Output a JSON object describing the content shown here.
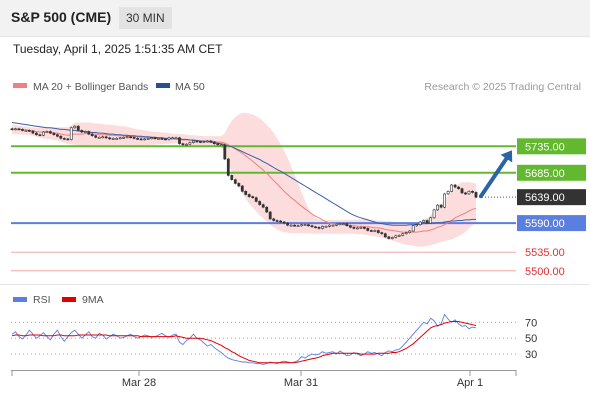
{
  "header": {
    "symbol": "S&P 500 (CME)",
    "timeframe": "30 MIN"
  },
  "date_line": "Tuesday, April 1, 2025 1:51:35 AM CET",
  "credit": "Research © 2025 Trading Central",
  "colors": {
    "support": "#5b7fe0",
    "resistance": "#62b82e",
    "weak": "#f0a8a8",
    "last": "#333333",
    "ma20": "#f08080",
    "ma50": "#3a5fa8",
    "band": "#fbd6d6",
    "rsi": "#5b7fe0",
    "rsi_ma": "#e00000",
    "arrow": "#2a63a8"
  },
  "chart_data": [
    {
      "type": "candlestick",
      "ylim": [
        5475,
        5830
      ],
      "legend": [
        {
          "name": "MA 20 + Bollinger Bands",
          "color": "#f08080"
        },
        {
          "name": "MA 50",
          "color": "#2a4f8f"
        }
      ],
      "x_ticks": [
        "Mar 28",
        "Mar 31",
        "Apr 1"
      ],
      "levels": [
        {
          "value": 5735.0,
          "label": "5735.00",
          "kind": "resistance"
        },
        {
          "value": 5685.0,
          "label": "5685.00",
          "kind": "resistance"
        },
        {
          "value": 5639.0,
          "label": "5639.00",
          "kind": "last"
        },
        {
          "value": 5590.0,
          "label": "5590.00",
          "kind": "support"
        },
        {
          "value": 5535.0,
          "label": "5535.00",
          "kind": "weak"
        },
        {
          "value": 5500.0,
          "label": "5500.00",
          "kind": "weak"
        }
      ],
      "close": [
        5767,
        5768,
        5767,
        5765,
        5765,
        5764,
        5760,
        5757,
        5756,
        5762,
        5763,
        5760,
        5757,
        5754,
        5750,
        5749,
        5748,
        5770,
        5773,
        5765,
        5762,
        5763,
        5758,
        5755,
        5752,
        5752,
        5753,
        5751,
        5749,
        5750,
        5750,
        5751,
        5752,
        5753,
        5752,
        5750,
        5749,
        5748,
        5749,
        5750,
        5751,
        5750,
        5750,
        5749,
        5748,
        5751,
        5751,
        5751,
        5740,
        5738,
        5739,
        5742,
        5745,
        5744,
        5743,
        5744,
        5745,
        5743,
        5740,
        5738,
        5738,
        5711,
        5680,
        5672,
        5665,
        5660,
        5650,
        5644,
        5640,
        5638,
        5631,
        5625,
        5620,
        5611,
        5598,
        5595,
        5594,
        5592,
        5590,
        5586,
        5586,
        5585,
        5585,
        5587,
        5587,
        5585,
        5583,
        5582,
        5580,
        5584,
        5584,
        5586,
        5586,
        5588,
        5589,
        5589,
        5585,
        5582,
        5580,
        5581,
        5582,
        5580,
        5576,
        5575,
        5576,
        5572,
        5570,
        5564,
        5561,
        5563,
        5566,
        5567,
        5570,
        5572,
        5575,
        5585,
        5587,
        5592,
        5595,
        5590,
        5600,
        5615,
        5624,
        5620,
        5645,
        5650,
        5662,
        5658,
        5655,
        5647,
        5645,
        5650,
        5648,
        5639
      ],
      "ma20": [
        5768,
        5767,
        5767,
        5766,
        5766,
        5765,
        5764,
        5763,
        5762,
        5762,
        5762,
        5761,
        5760,
        5760,
        5758,
        5757,
        5756,
        5757,
        5758,
        5758,
        5758,
        5759,
        5759,
        5758,
        5758,
        5757,
        5757,
        5757,
        5756,
        5756,
        5755,
        5755,
        5755,
        5754,
        5754,
        5753,
        5753,
        5752,
        5752,
        5751,
        5750,
        5750,
        5750,
        5749,
        5749,
        5749,
        5749,
        5749,
        5748,
        5747,
        5747,
        5747,
        5746,
        5746,
        5745,
        5745,
        5745,
        5745,
        5744,
        5743,
        5743,
        5741,
        5738,
        5734,
        5730,
        5726,
        5722,
        5717,
        5712,
        5707,
        5701,
        5696,
        5690,
        5684,
        5677,
        5670,
        5664,
        5657,
        5650,
        5644,
        5638,
        5633,
        5627,
        5622,
        5617,
        5612,
        5607,
        5603,
        5600,
        5596,
        5593,
        5590,
        5589,
        5588,
        5587,
        5587,
        5586,
        5585,
        5585,
        5584,
        5584,
        5583,
        5583,
        5582,
        5581,
        5581,
        5580,
        5578,
        5577,
        5576,
        5575,
        5574,
        5573,
        5573,
        5573,
        5573,
        5573,
        5574,
        5575,
        5575,
        5577,
        5579,
        5582,
        5584,
        5587,
        5591,
        5595,
        5600,
        5603,
        5606,
        5609,
        5613,
        5616,
        5618
      ],
      "bb_upper": [
        5776,
        5775,
        5774,
        5773,
        5772,
        5771,
        5770,
        5770,
        5770,
        5770,
        5770,
        5771,
        5771,
        5771,
        5771,
        5771,
        5771,
        5775,
        5779,
        5780,
        5780,
        5780,
        5780,
        5779,
        5778,
        5778,
        5777,
        5776,
        5776,
        5775,
        5774,
        5773,
        5773,
        5772,
        5770,
        5768,
        5767,
        5766,
        5765,
        5764,
        5763,
        5762,
        5762,
        5761,
        5761,
        5760,
        5759,
        5758,
        5758,
        5758,
        5757,
        5756,
        5756,
        5755,
        5755,
        5754,
        5754,
        5754,
        5754,
        5754,
        5754,
        5760,
        5773,
        5783,
        5790,
        5795,
        5798,
        5798,
        5797,
        5795,
        5792,
        5788,
        5782,
        5776,
        5769,
        5760,
        5750,
        5739,
        5727,
        5713,
        5697,
        5681,
        5664,
        5648,
        5632,
        5618,
        5608,
        5600,
        5596,
        5595,
        5595,
        5596,
        5596,
        5596,
        5596,
        5596,
        5596,
        5596,
        5596,
        5597,
        5597,
        5597,
        5597,
        5596,
        5595,
        5595,
        5595,
        5594,
        5594,
        5593,
        5592,
        5591,
        5590,
        5590,
        5590,
        5590,
        5590,
        5592,
        5596,
        5599,
        5605,
        5612,
        5620,
        5625,
        5633,
        5641,
        5650,
        5659,
        5664,
        5667,
        5667,
        5667,
        5666,
        5665
      ],
      "bb_lower": [
        5758,
        5758,
        5758,
        5757,
        5757,
        5756,
        5755,
        5753,
        5751,
        5750,
        5749,
        5748,
        5747,
        5746,
        5744,
        5742,
        5740,
        5739,
        5738,
        5737,
        5736,
        5736,
        5736,
        5737,
        5737,
        5737,
        5737,
        5737,
        5737,
        5737,
        5737,
        5737,
        5737,
        5736,
        5736,
        5736,
        5736,
        5737,
        5737,
        5737,
        5738,
        5738,
        5739,
        5739,
        5740,
        5740,
        5741,
        5741,
        5740,
        5739,
        5738,
        5737,
        5737,
        5737,
        5737,
        5737,
        5737,
        5737,
        5736,
        5734,
        5733,
        5724,
        5704,
        5686,
        5671,
        5658,
        5646,
        5636,
        5627,
        5619,
        5612,
        5605,
        5599,
        5593,
        5587,
        5582,
        5578,
        5575,
        5573,
        5572,
        5571,
        5571,
        5571,
        5571,
        5571,
        5571,
        5570,
        5570,
        5570,
        5570,
        5570,
        5570,
        5570,
        5570,
        5570,
        5570,
        5570,
        5570,
        5570,
        5569,
        5569,
        5568,
        5567,
        5566,
        5565,
        5564,
        5563,
        5561,
        5559,
        5557,
        5555,
        5553,
        5551,
        5549,
        5548,
        5547,
        5546,
        5545,
        5546,
        5547,
        5548,
        5550,
        5552,
        5554,
        5556,
        5558,
        5559,
        5562,
        5565,
        5569,
        5574,
        5580,
        5586,
        5592
      ],
      "ma50": [
        5780,
        5779,
        5778,
        5777,
        5776,
        5775,
        5774,
        5773,
        5772,
        5771,
        5770,
        5770,
        5769,
        5768,
        5767,
        5767,
        5766,
        5765,
        5765,
        5764,
        5763,
        5763,
        5762,
        5761,
        5761,
        5760,
        5760,
        5759,
        5758,
        5758,
        5757,
        5757,
        5756,
        5756,
        5755,
        5755,
        5754,
        5754,
        5753,
        5753,
        5752,
        5752,
        5751,
        5751,
        5750,
        5750,
        5750,
        5749,
        5749,
        5748,
        5748,
        5747,
        5747,
        5746,
        5745,
        5745,
        5744,
        5743,
        5742,
        5741,
        5740,
        5738,
        5736,
        5734,
        5731,
        5728,
        5725,
        5722,
        5719,
        5716,
        5713,
        5710,
        5706,
        5703,
        5699,
        5695,
        5691,
        5688,
        5684,
        5680,
        5676,
        5672,
        5668,
        5664,
        5660,
        5656,
        5652,
        5648,
        5644,
        5640,
        5636,
        5632,
        5628,
        5624,
        5620,
        5616,
        5612,
        5608,
        5605,
        5602,
        5600,
        5598,
        5596,
        5594,
        5592,
        5590,
        5589,
        5588,
        5587,
        5586,
        5586,
        5586,
        5586,
        5586,
        5587,
        5587,
        5588,
        5588,
        5589,
        5589,
        5590,
        5590,
        5591,
        5591,
        5592,
        5593,
        5594,
        5594,
        5595,
        5595,
        5596,
        5596,
        5597,
        5597
      ],
      "forecast": {
        "from": 5639,
        "to": 5735
      }
    },
    {
      "type": "line",
      "legend": [
        {
          "name": "RSI",
          "color": "#5b7fe0"
        },
        {
          "name": "9MA",
          "color": "#e00000"
        }
      ],
      "ylim": [
        15,
        88
      ],
      "y_ticks": [
        30,
        50,
        70
      ],
      "rsi": [
        55,
        58,
        52,
        49,
        54,
        60,
        55,
        50,
        53,
        57,
        52,
        48,
        55,
        60,
        52,
        46,
        52,
        57,
        60,
        55,
        50,
        54,
        58,
        52,
        50,
        56,
        54,
        49,
        52,
        55,
        53,
        50,
        51,
        53,
        55,
        52,
        50,
        52,
        54,
        53,
        51,
        52,
        54,
        56,
        53,
        51,
        54,
        55,
        45,
        42,
        47,
        50,
        55,
        50,
        48,
        44,
        40,
        42,
        38,
        35,
        32,
        28,
        25,
        23,
        22,
        21,
        20,
        20,
        19,
        19,
        18,
        18,
        17,
        18,
        20,
        19,
        18,
        20,
        21,
        20,
        19,
        20,
        22,
        27,
        25,
        28,
        30,
        29,
        30,
        33,
        31,
        32,
        33,
        30,
        34,
        31,
        28,
        29,
        32,
        30,
        28,
        30,
        33,
        31,
        32,
        30,
        28,
        32,
        34,
        33,
        35,
        36,
        40,
        45,
        50,
        55,
        60,
        65,
        70,
        68,
        75,
        72,
        65,
        68,
        80,
        74,
        70,
        73,
        68,
        65,
        66,
        62,
        64,
        63
      ],
      "ma9": [
        53,
        54,
        54,
        53,
        53,
        54,
        54,
        54,
        54,
        53,
        53,
        53,
        53,
        54,
        54,
        53,
        53,
        53,
        53,
        54,
        54,
        54,
        54,
        54,
        54,
        54,
        54,
        54,
        53,
        53,
        53,
        53,
        53,
        53,
        53,
        53,
        53,
        52,
        52,
        52,
        52,
        52,
        52,
        52,
        52,
        52,
        52,
        53,
        52,
        51,
        50,
        50,
        50,
        50,
        50,
        49,
        48,
        47,
        45,
        43,
        41,
        38,
        36,
        33,
        31,
        28,
        26,
        24,
        22,
        21,
        20,
        19,
        19,
        19,
        19,
        19,
        19,
        19,
        19,
        19,
        19,
        19,
        20,
        21,
        22,
        23,
        24,
        25,
        26,
        28,
        29,
        30,
        31,
        31,
        31,
        31,
        31,
        31,
        31,
        31,
        30,
        30,
        30,
        30,
        30,
        31,
        31,
        31,
        31,
        32,
        32,
        33,
        35,
        37,
        40,
        43,
        47,
        51,
        55,
        59,
        63,
        65,
        66,
        67,
        69,
        70,
        71,
        71,
        71,
        70,
        69,
        68,
        67,
        66
      ]
    }
  ]
}
